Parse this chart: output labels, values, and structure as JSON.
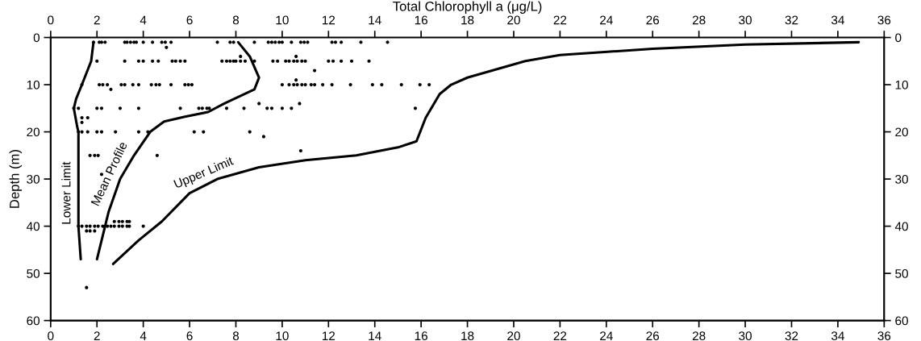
{
  "chart_data": {
    "type": "scatter",
    "xlabel": "Total Chlorophyll a (μg/L)",
    "ylabel": "Depth (m)",
    "xlim": [
      0,
      36
    ],
    "xticks": [
      0,
      2,
      4,
      6,
      8,
      10,
      12,
      14,
      16,
      18,
      20,
      22,
      24,
      26,
      28,
      30,
      32,
      34,
      36
    ],
    "x2lim": [
      0,
      36
    ],
    "x2ticks": [
      0,
      2,
      4,
      6,
      8,
      10,
      12,
      14,
      16,
      18,
      20,
      22,
      24,
      26,
      28,
      30,
      32,
      34,
      36
    ],
    "ylim": [
      60,
      0
    ],
    "yticks": [
      0,
      10,
      20,
      30,
      40,
      50,
      60
    ],
    "y2lim": [
      60,
      0
    ],
    "y2ticks": [
      0,
      10,
      20,
      30,
      40,
      50,
      60
    ],
    "grid": false,
    "legend": false,
    "series": [
      {
        "color": "#000000",
        "marker": "circle",
        "x": [
          1.85,
          2.1,
          2.2,
          2.35,
          3.2,
          3.3,
          3.45,
          3.6,
          3.7,
          4.0,
          4.4,
          4.8,
          4.95,
          5.2,
          5.0,
          7.2,
          7.75,
          7.9,
          8.8,
          9.4,
          9.55,
          9.7,
          9.87,
          10.0,
          10.4,
          10.8,
          10.95,
          11.1,
          12.15,
          12.3,
          12.55,
          13.4,
          14.55,
          2.0,
          3.2,
          3.8,
          4.0,
          4.4,
          4.65,
          5.25,
          5.4,
          5.6,
          5.8,
          7.4,
          7.6,
          7.75,
          7.9,
          8.0,
          8.2,
          8.4,
          8.8,
          9.6,
          9.8,
          10.15,
          10.3,
          10.5,
          10.65,
          10.85,
          11.0,
          12.0,
          12.2,
          12.55,
          13.0,
          13.75,
          8.2,
          10.6,
          11.4,
          1.35,
          2.1,
          2.25,
          2.45,
          2.6,
          3.05,
          3.2,
          3.55,
          3.8,
          4.35,
          4.55,
          4.7,
          5.2,
          5.8,
          5.95,
          6.1,
          10.0,
          10.3,
          10.5,
          10.65,
          10.85,
          11.0,
          11.25,
          11.4,
          11.75,
          12.15,
          12.95,
          13.9,
          14.3,
          15.15,
          15.95,
          16.35,
          10.6,
          1.0,
          1.2,
          2.0,
          2.2,
          3.0,
          3.8,
          5.6,
          6.4,
          6.55,
          6.75,
          6.85,
          7.6,
          8.35,
          9.0,
          9.35,
          9.55,
          10.0,
          10.4,
          10.75,
          15.75,
          1.35,
          1.6,
          1.35,
          1.2,
          1.35,
          1.6,
          2.0,
          2.2,
          2.8,
          3.8,
          4.2,
          6.2,
          6.6,
          8.6,
          9.2,
          10.8,
          1.7,
          1.9,
          2.05,
          4.6,
          2.2,
          1.2,
          1.35,
          1.55,
          1.7,
          1.9,
          2.05,
          2.25,
          2.45,
          2.6,
          2.75,
          2.95,
          3.1,
          3.3,
          3.4,
          4.0,
          2.75,
          2.95,
          3.1,
          3.3,
          3.4,
          1.55,
          1.7,
          1.9,
          1.55
        ],
        "values": [
          1,
          1,
          1,
          1,
          1,
          1,
          1,
          1,
          1,
          1,
          1,
          1,
          1,
          1,
          2.1,
          1,
          1,
          1,
          1,
          1,
          1,
          1,
          1,
          1,
          1,
          1,
          1,
          1,
          1,
          1,
          1,
          1,
          1,
          5,
          5,
          5,
          5,
          5,
          5,
          5,
          5,
          5,
          5,
          5,
          5,
          5,
          5,
          5,
          5,
          5,
          5,
          5,
          5,
          5,
          5,
          5,
          5,
          5,
          5,
          5,
          5,
          5,
          5,
          5,
          4,
          4,
          7,
          10,
          10,
          10,
          10,
          11,
          10,
          10,
          10,
          10,
          10,
          10,
          10,
          10,
          10,
          10,
          10,
          10,
          10,
          10,
          10,
          10,
          10,
          10,
          10,
          10,
          10,
          10,
          10,
          10,
          10,
          10,
          10,
          9,
          15,
          15,
          15,
          15,
          15,
          15,
          15,
          15,
          15,
          15,
          15,
          15,
          15,
          14,
          15,
          15,
          15,
          15,
          14,
          15,
          17,
          17,
          18,
          20,
          20,
          20,
          20,
          20,
          20,
          20,
          20,
          20,
          20,
          20,
          21,
          24,
          25,
          25,
          25,
          25,
          29,
          40,
          40,
          40,
          40,
          40,
          40,
          40,
          40,
          40,
          40,
          40,
          40,
          40,
          40,
          40,
          39,
          39,
          39,
          39,
          39,
          41,
          41,
          41,
          53
        ]
      },
      {
        "type": "line",
        "name": "Lower Limit",
        "color": "#000000",
        "marker": "none",
        "line_style": "solid",
        "x": [
          1.85,
          1.75,
          1.35,
          1.1,
          1.0,
          1.15,
          1.2,
          1.2,
          1.2,
          1.3
        ],
        "values": [
          1,
          5,
          10,
          13,
          15,
          19,
          20,
          30,
          40,
          47
        ]
      },
      {
        "type": "line",
        "name": "Mean Profile",
        "color": "#000000",
        "marker": "none",
        "line_style": "solid",
        "x": [
          8.1,
          8.6,
          9.0,
          8.8,
          7.5,
          6.8,
          5.8,
          4.9,
          4.3,
          3.6,
          3.0,
          2.5,
          2.0
        ],
        "values": [
          1,
          4,
          8.5,
          11,
          14,
          15.8,
          16.8,
          17.8,
          20,
          25,
          30,
          37,
          47
        ]
      },
      {
        "type": "line",
        "name": "Upper Limit",
        "color": "#000000",
        "marker": "none",
        "line_style": "solid",
        "x": [
          34.9,
          30,
          26,
          22,
          20.5,
          18,
          17.3,
          16.8,
          16.2,
          15.8,
          15,
          13.2,
          11,
          9,
          7.2,
          6,
          4.8,
          3.8,
          2.7
        ],
        "values": [
          1,
          1.5,
          2.4,
          3.7,
          5,
          8.5,
          10,
          12,
          17,
          22,
          23.3,
          25,
          26,
          27.5,
          30,
          33,
          39,
          43,
          48
        ]
      }
    ]
  }
}
